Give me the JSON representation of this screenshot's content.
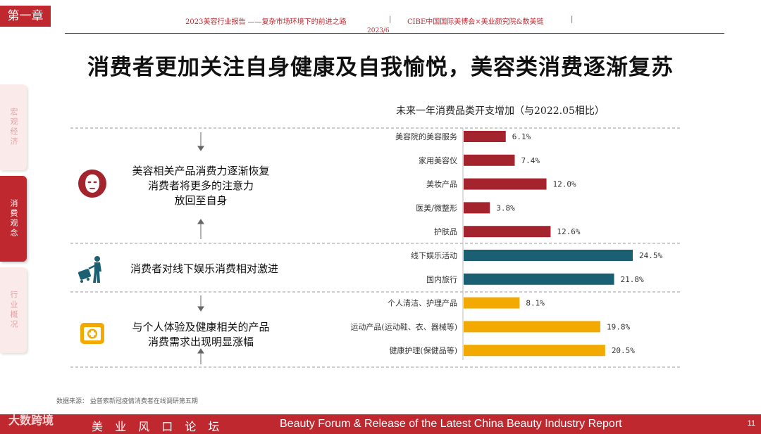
{
  "header": {
    "chapter": "第一章",
    "report": "2023美容行业报告 ——复杂市场环境下的前进之路",
    "date": "2023/6",
    "sep1": "|",
    "org": "CIBE中国国际美博会×美业颜究院&数美链",
    "sep2": "|"
  },
  "title": "消费者更加关注自身健康及自我愉悦，美容类消费逐渐复苏",
  "side_tabs": [
    {
      "label": "宏观经济",
      "active": false
    },
    {
      "label": "消费观念",
      "active": true
    },
    {
      "label": "行业概况",
      "active": false
    }
  ],
  "groups": [
    {
      "text_lines": [
        "美容相关产品消费力逐渐恢复",
        "消费者将更多的注意力",
        "放回至自身"
      ],
      "icon": "face-mask-icon",
      "color": "#a3242c"
    },
    {
      "text_lines": [
        "消费者对线下娱乐消费相对激进"
      ],
      "icon": "traveler-icon",
      "color": "#1b5f73"
    },
    {
      "text_lines": [
        "与个人体验及健康相关的产品",
        "消费需求出现明显涨幅"
      ],
      "icon": "health-kit-icon",
      "color": "#f2a900"
    }
  ],
  "chart_data": {
    "type": "bar",
    "orientation": "horizontal",
    "title": "未来一年消费品类开支增加（与2022.05相比）",
    "categories": [
      "美容院的美容服务",
      "家用美容仪",
      "美妆产品",
      "医美/微整形",
      "护肤品",
      "线下娱乐活动",
      "国内旅行",
      "个人清洁、护理产品",
      "运动产品(运动鞋、衣、器械等)",
      "健康护理(保健品等)"
    ],
    "values": [
      6.1,
      7.4,
      12.0,
      3.8,
      12.6,
      24.5,
      21.8,
      8.1,
      19.8,
      20.5
    ],
    "value_labels": [
      "6.1%",
      "7.4%",
      "12.0%",
      "3.8%",
      "12.6%",
      "24.5%",
      "21.8%",
      "8.1%",
      "19.8%",
      "20.5%"
    ],
    "group_of_bar": [
      0,
      0,
      0,
      0,
      0,
      1,
      1,
      2,
      2,
      2
    ],
    "colors": [
      "#a3242c",
      "#1b5f73",
      "#f2a900"
    ],
    "xlim": [
      0,
      30
    ]
  },
  "source": "数据来源： 益普索新冠疫情消费者在线调研第五期",
  "footer": {
    "cn": "美 业 风 口 论 坛",
    "en": "Beauty Forum & Release of the Latest China Beauty Industry Report",
    "page": "11"
  },
  "watermark": "大数跨境"
}
